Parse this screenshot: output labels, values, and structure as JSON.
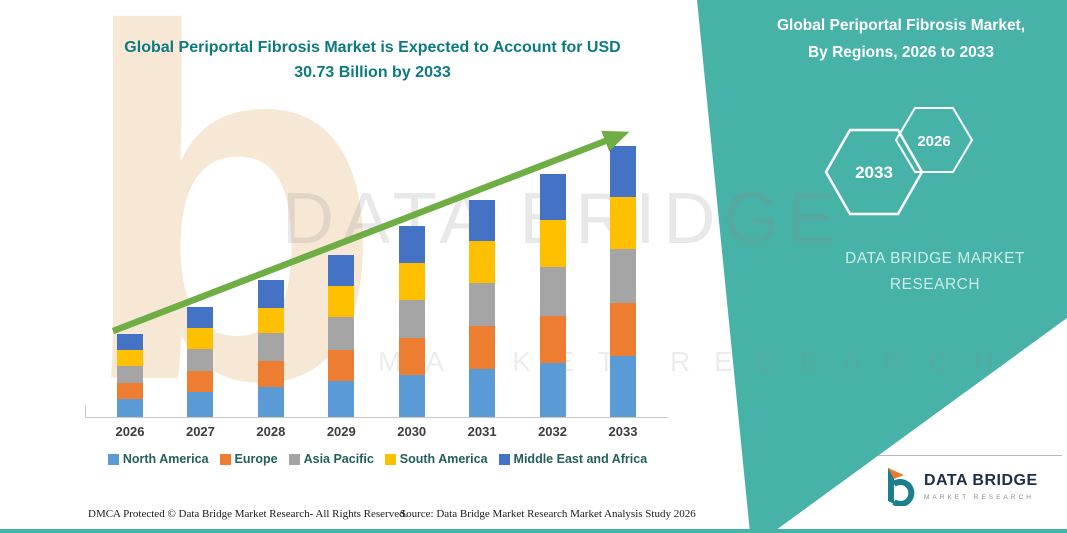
{
  "colors": {
    "accent_teal": "#47b2a7",
    "title_teal": "#0d7a80",
    "arrow_green": "#6fae44",
    "axis_gray": "#c9c9c9"
  },
  "header": {
    "title_line1": "Global Periportal Fibrosis Market is Expected to Account for USD",
    "title_line2": "30.73 Billion by 2033"
  },
  "panel": {
    "title_line1": "Global Periportal Fibrosis Market,",
    "title_line2": "By Regions, 2026 to 2033",
    "hexagon_back_year": "2033",
    "hexagon_front_year": "2026",
    "brand_line1": "DATA BRIDGE MARKET",
    "brand_line2": "RESEARCH"
  },
  "watermark": {
    "big_text": "DATA BRIDGE",
    "spaced_text": "MARKET RESEARCH",
    "letter": "b"
  },
  "logo": {
    "title": "DATA BRIDGE",
    "subtitle": "MARKET RESEARCH"
  },
  "footer": {
    "dmca": "DMCA Protected © Data Bridge Market Research-  All Rights Reserved.",
    "source": "Source: Data Bridge Market Research  Market Analysis Study 2026"
  },
  "chart_data": {
    "type": "bar",
    "subtype": "stacked",
    "title": "Global Periportal Fibrosis Market is Expected to Account for USD 30.73 Billion by 2033",
    "xlabel": "",
    "ylabel": "",
    "ylim": [
      0,
      34
    ],
    "grid": false,
    "legend_position": "bottom",
    "value_unit": "USD Billion",
    "stated_total_2033": 30.73,
    "categories": [
      "2026",
      "2027",
      "2028",
      "2029",
      "2030",
      "2031",
      "2032",
      "2033"
    ],
    "series": [
      {
        "name": "North America",
        "color": "#5B9BD5",
        "values": [
          2.1,
          2.8,
          3.4,
          4.1,
          4.8,
          5.5,
          6.1,
          6.9
        ]
      },
      {
        "name": "Europe",
        "color": "#ED7D31",
        "values": [
          1.8,
          2.4,
          3.0,
          3.5,
          4.2,
          4.8,
          5.4,
          6.0
        ]
      },
      {
        "name": "Asia Pacific",
        "color": "#A5A5A5",
        "values": [
          1.9,
          2.5,
          3.1,
          3.7,
          4.3,
          4.9,
          5.5,
          6.1
        ]
      },
      {
        "name": "South America",
        "color": "#FFC000",
        "values": [
          1.8,
          2.4,
          2.9,
          3.5,
          4.1,
          4.7,
          5.3,
          5.9
        ]
      },
      {
        "name": "Middle East and Africa",
        "color": "#4472C4",
        "values": [
          1.8,
          2.4,
          3.1,
          3.6,
          4.2,
          4.7,
          5.2,
          5.83
        ]
      }
    ],
    "totals": [
      9.4,
      12.5,
      15.5,
      18.4,
      21.6,
      24.6,
      27.5,
      30.73
    ],
    "trend": "increasing"
  }
}
